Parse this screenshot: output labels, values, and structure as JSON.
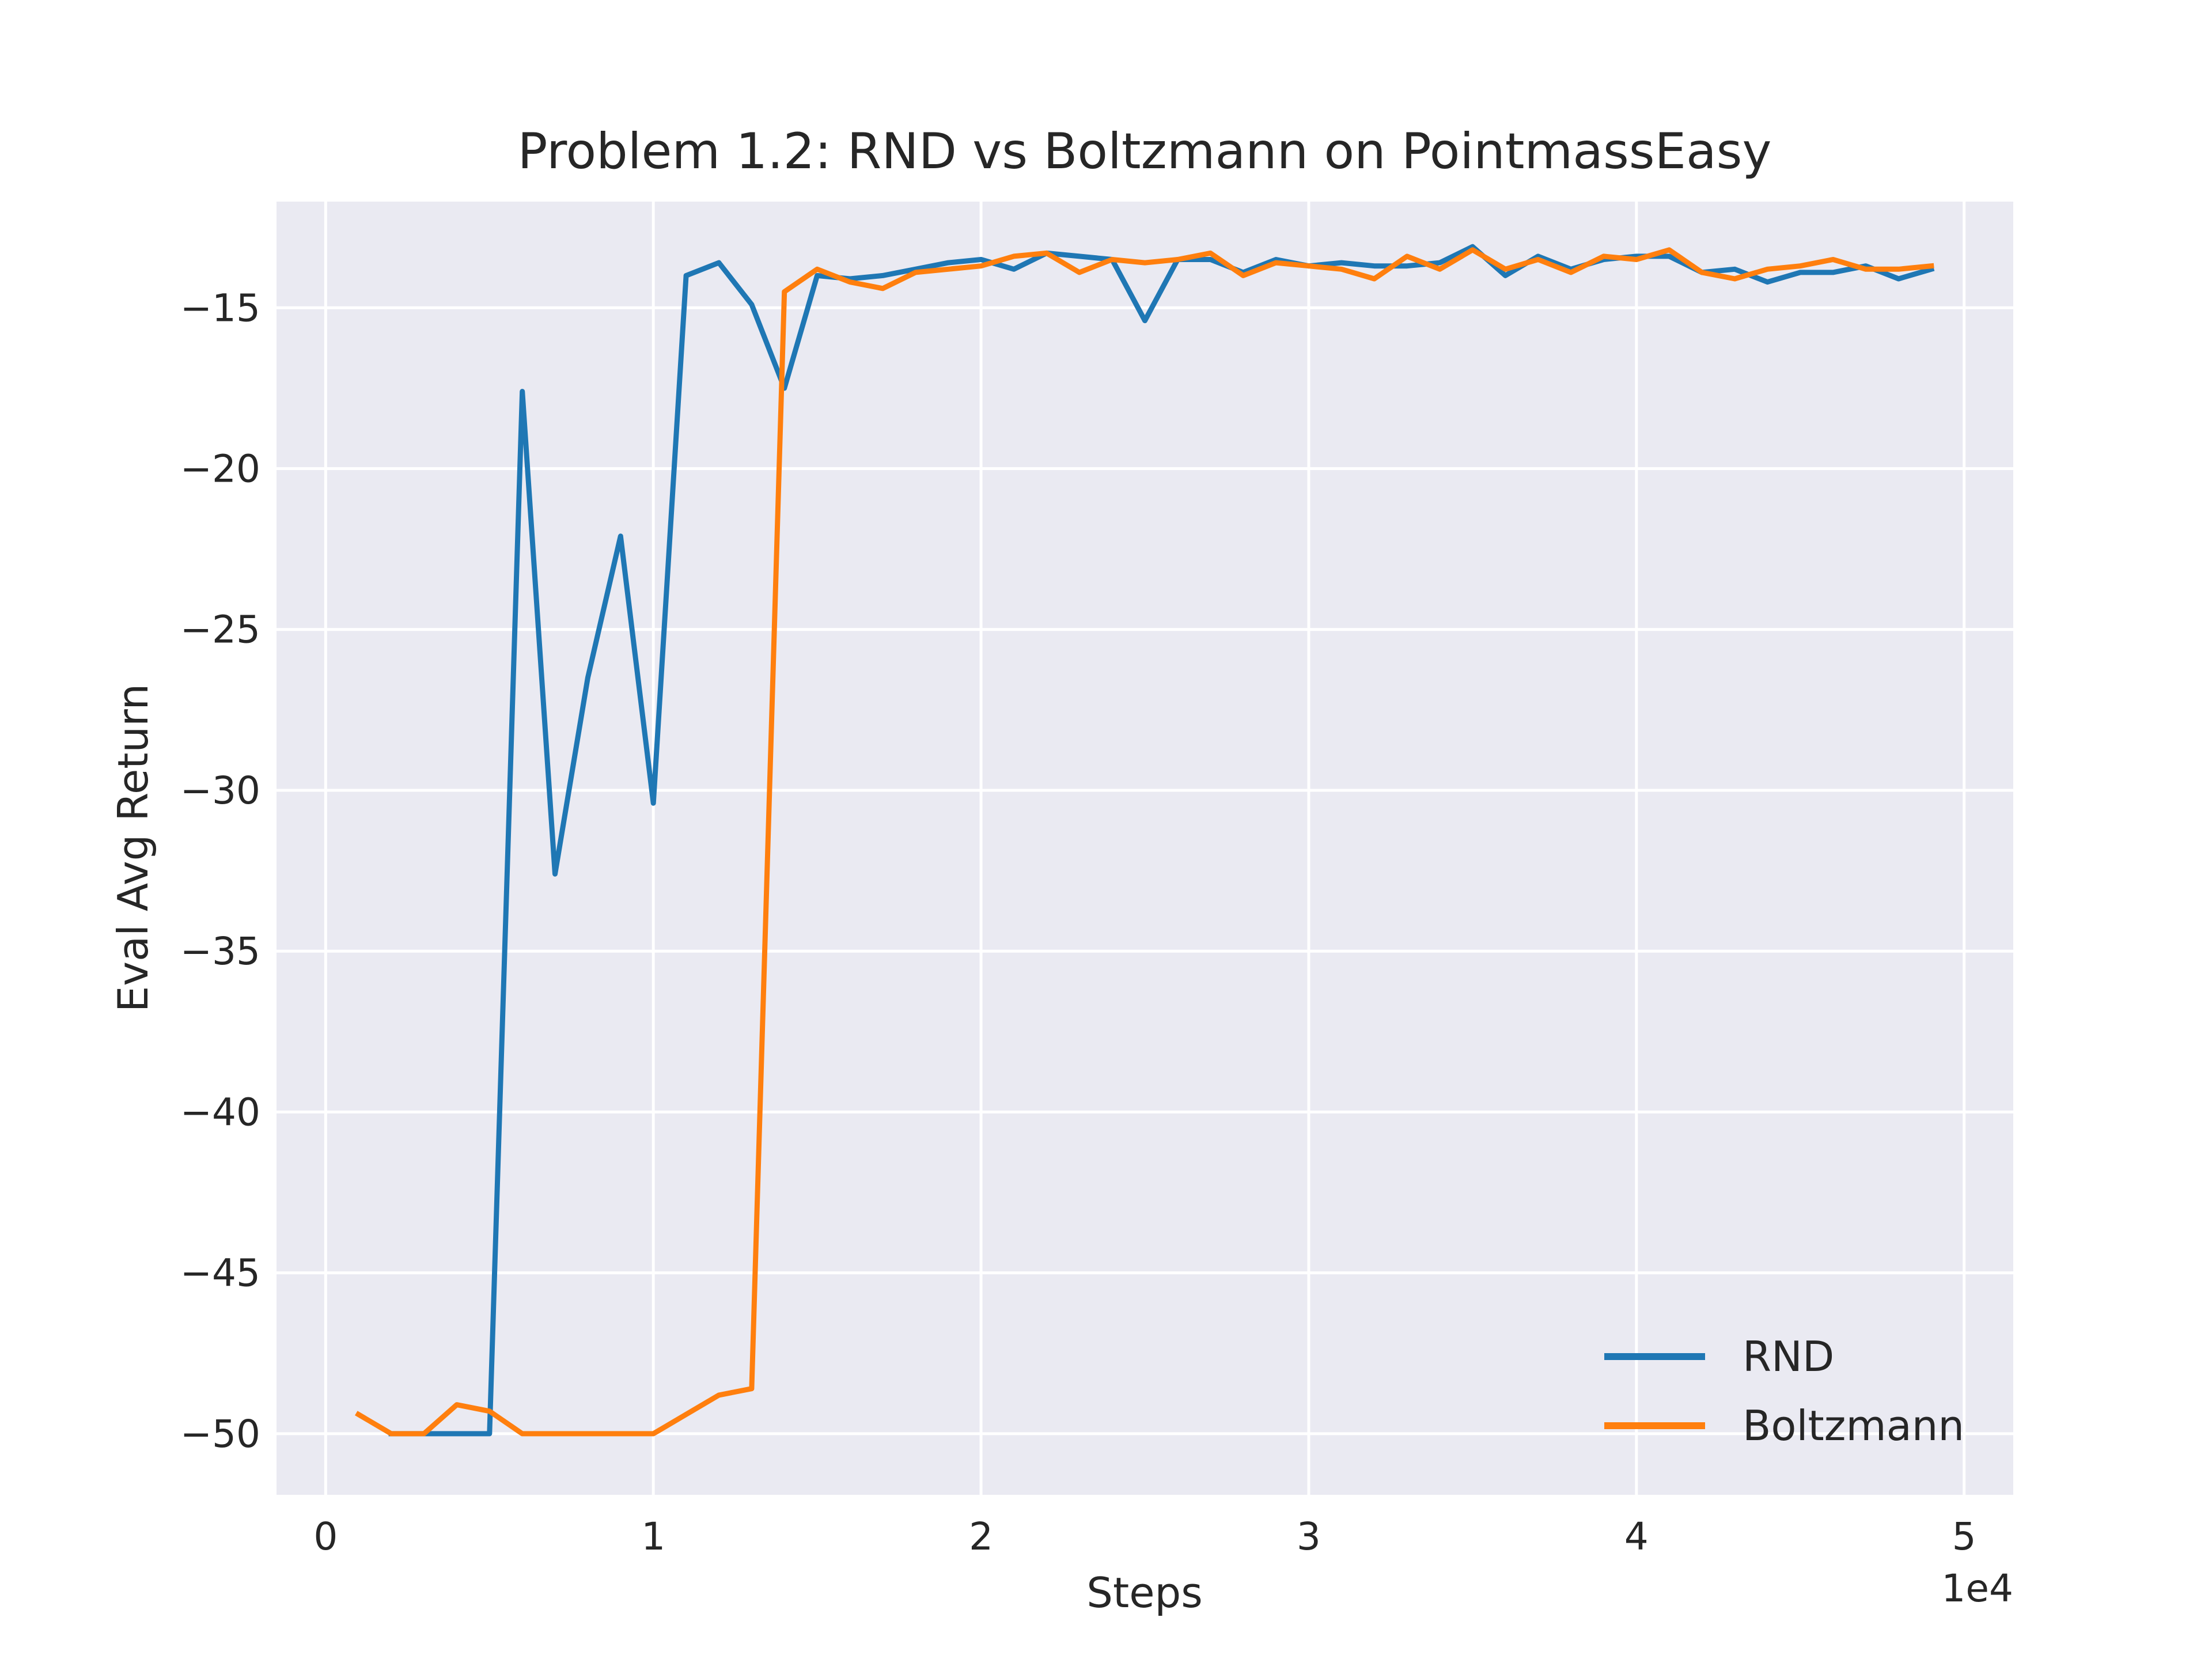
{
  "chart_data": {
    "type": "line",
    "title": "Problem 1.2: RND vs Boltzmann on PointmassEasy",
    "xlabel": "Steps",
    "ylabel": "Eval Avg Return",
    "x_offset_text": "1e4",
    "xlim": [
      -0.15,
      5.15
    ],
    "ylim": [
      -51.9,
      -11.7
    ],
    "x_ticks": [
      0,
      1,
      2,
      3,
      4,
      5
    ],
    "x_tick_labels": [
      "0",
      "1",
      "2",
      "3",
      "4",
      "5"
    ],
    "y_ticks": [
      -15,
      -20,
      -25,
      -30,
      -35,
      -40,
      -45,
      -50
    ],
    "y_tick_labels": [
      "−15",
      "−20",
      "−25",
      "−30",
      "−35",
      "−40",
      "−45",
      "−50"
    ],
    "grid": true,
    "legend_position": "lower-right",
    "series": [
      {
        "name": "RND",
        "color": "#1f77b4",
        "x": [
          0.2,
          0.3,
          0.4,
          0.5,
          0.6,
          0.7,
          0.8,
          0.9,
          1.0,
          1.1,
          1.2,
          1.3,
          1.4,
          1.5,
          1.6,
          1.7,
          1.8,
          1.9,
          2.0,
          2.1,
          2.2,
          2.3,
          2.4,
          2.5,
          2.6,
          2.7,
          2.8,
          2.9,
          3.0,
          3.1,
          3.2,
          3.3,
          3.4,
          3.5,
          3.6,
          3.7,
          3.8,
          3.9,
          4.0,
          4.1,
          4.2,
          4.3,
          4.4,
          4.5,
          4.6,
          4.7,
          4.8,
          4.9
        ],
        "values": [
          -50,
          -50,
          -50,
          -50,
          -17.6,
          -32.6,
          -26.5,
          -22.1,
          -30.4,
          -14.0,
          -13.6,
          -14.9,
          -17.5,
          -14.0,
          -14.1,
          -14.0,
          -13.8,
          -13.6,
          -13.5,
          -13.8,
          -13.3,
          -13.4,
          -13.5,
          -15.4,
          -13.5,
          -13.5,
          -13.9,
          -13.5,
          -13.7,
          -13.6,
          -13.7,
          -13.7,
          -13.6,
          -13.1,
          -14.0,
          -13.4,
          -13.8,
          -13.5,
          -13.4,
          -13.4,
          -13.9,
          -13.8,
          -14.2,
          -13.9,
          -13.9,
          -13.7,
          -14.1,
          -13.8
        ]
      },
      {
        "name": "Boltzmann",
        "color": "#ff7f0e",
        "x": [
          0.1,
          0.2,
          0.3,
          0.4,
          0.5,
          0.6,
          0.7,
          0.8,
          0.9,
          1.0,
          1.1,
          1.2,
          1.3,
          1.4,
          1.5,
          1.6,
          1.7,
          1.8,
          1.9,
          2.0,
          2.1,
          2.2,
          2.3,
          2.4,
          2.5,
          2.6,
          2.7,
          2.8,
          2.9,
          3.0,
          3.1,
          3.2,
          3.3,
          3.4,
          3.5,
          3.6,
          3.7,
          3.8,
          3.9,
          4.0,
          4.1,
          4.2,
          4.3,
          4.4,
          4.5,
          4.6,
          4.7,
          4.8,
          4.9
        ],
        "values": [
          -49.4,
          -50,
          -50,
          -49.1,
          -49.3,
          -50,
          -50,
          -50,
          -50,
          -50,
          -49.4,
          -48.8,
          -48.6,
          -14.5,
          -13.8,
          -14.2,
          -14.4,
          -13.9,
          -13.8,
          -13.7,
          -13.4,
          -13.3,
          -13.9,
          -13.5,
          -13.6,
          -13.5,
          -13.3,
          -14.0,
          -13.6,
          -13.7,
          -13.8,
          -14.1,
          -13.4,
          -13.8,
          -13.2,
          -13.8,
          -13.5,
          -13.9,
          -13.4,
          -13.5,
          -13.2,
          -13.9,
          -14.1,
          -13.8,
          -13.7,
          -13.5,
          -13.8,
          -13.8,
          -13.7
        ]
      }
    ]
  }
}
